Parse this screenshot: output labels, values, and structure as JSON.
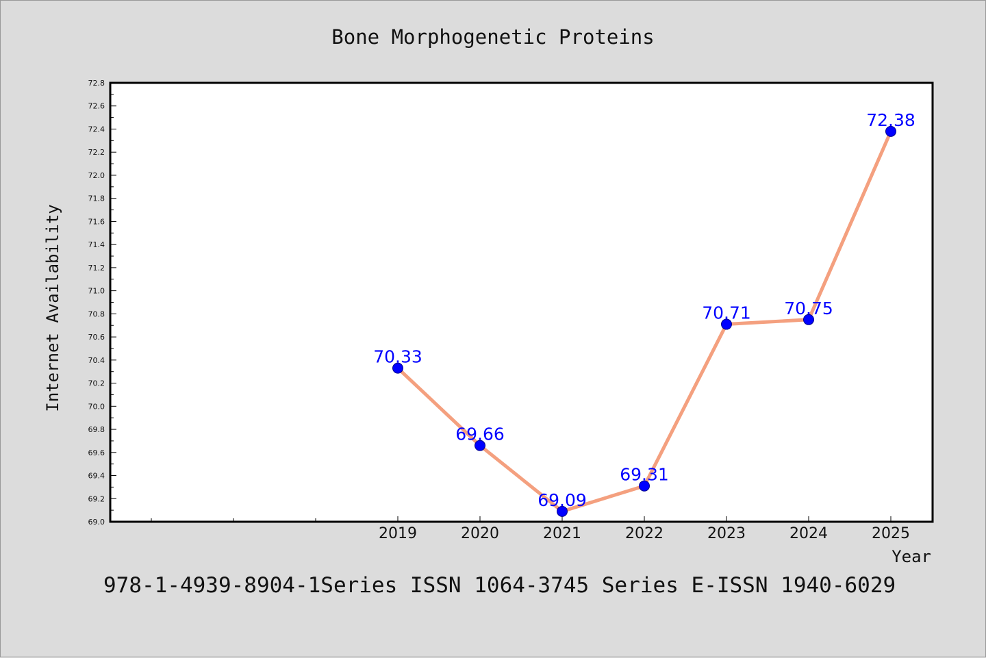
{
  "chart_data": {
    "type": "line",
    "title": "Bone Morphogenetic Proteins",
    "xlabel": "Year",
    "ylabel": "Internet Availability",
    "categories": [
      "2019",
      "2020",
      "2021",
      "2022",
      "2023",
      "2024",
      "2025"
    ],
    "values": [
      70.33,
      69.66,
      69.09,
      69.31,
      70.71,
      70.75,
      72.38
    ],
    "data_labels": [
      "70.33",
      "69.66",
      "69.09",
      "69.31",
      "70.71",
      "70.75",
      "72.38"
    ],
    "ylim": [
      69.0,
      72.8
    ],
    "yticks": [
      "69.0",
      "69.2",
      "69.4",
      "69.6",
      "69.8",
      "70.0",
      "70.2",
      "70.4",
      "70.6",
      "70.8",
      "71.0",
      "71.2",
      "71.4",
      "71.6",
      "71.8",
      "72.0",
      "72.2",
      "72.4",
      "72.6",
      "72.8"
    ],
    "grid": false,
    "legend": "none",
    "line_color": "#f4a07f",
    "marker_color": "#0000ff",
    "label_color": "#0000ff"
  },
  "footnote": "978-1-4939-8904-1Series ISSN 1064-3745 Series E-ISSN 1940-6029"
}
